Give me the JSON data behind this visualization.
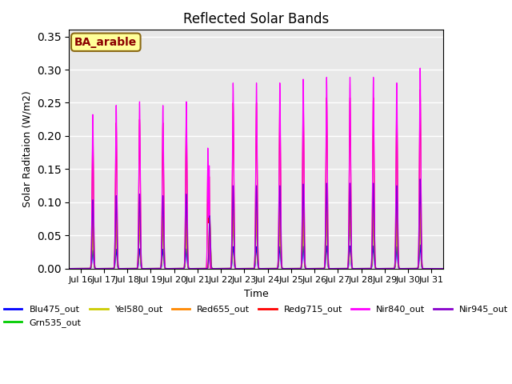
{
  "title": "Reflected Solar Bands",
  "xlabel": "Time",
  "ylabel": "Solar Raditaion (W/m2)",
  "ylim": [
    0,
    0.36
  ],
  "xlim_days": [
    15.5,
    31.5
  ],
  "annotation_text": "BA_arable",
  "annotation_color": "#8B0000",
  "annotation_bg": "#FFFF99",
  "annotation_border": "#8B6914",
  "bands": {
    "Blu475_out": {
      "color": "#0000FF",
      "scale": 0.033
    },
    "Grn535_out": {
      "color": "#00CC00",
      "scale": 0.078
    },
    "Yel580_out": {
      "color": "#CCCC00",
      "scale": 0.083
    },
    "Red655_out": {
      "color": "#FF8800",
      "scale": 0.09
    },
    "Redg715_out": {
      "color": "#FF0000",
      "scale": 0.25
    },
    "Nir840_out": {
      "color": "#FF00FF",
      "scale": 0.28
    },
    "Nir945_out": {
      "color": "#8800CC",
      "scale": 0.125
    }
  },
  "peak_day_amps": {
    "16": 0.83,
    "17": 0.88,
    "18": 0.9,
    "19": 0.88,
    "20": 0.9,
    "21": 0.85,
    "22": 1.0,
    "23": 1.0,
    "24": 1.0,
    "25": 1.02,
    "26": 1.03,
    "27": 1.03,
    "28": 1.03,
    "29": 1.0,
    "30": 1.08,
    "31": 0.0
  },
  "cloud_days": {
    "21": {
      "Redg715_out": 0.65,
      "Nir840_out": 0.65,
      "Nir945_out": 0.75
    }
  },
  "tick_days": [
    16,
    17,
    18,
    19,
    20,
    21,
    22,
    23,
    24,
    25,
    26,
    27,
    28,
    29,
    30,
    31
  ],
  "background_color": "#FFFFFF",
  "plot_bg": "#E8E8E8"
}
